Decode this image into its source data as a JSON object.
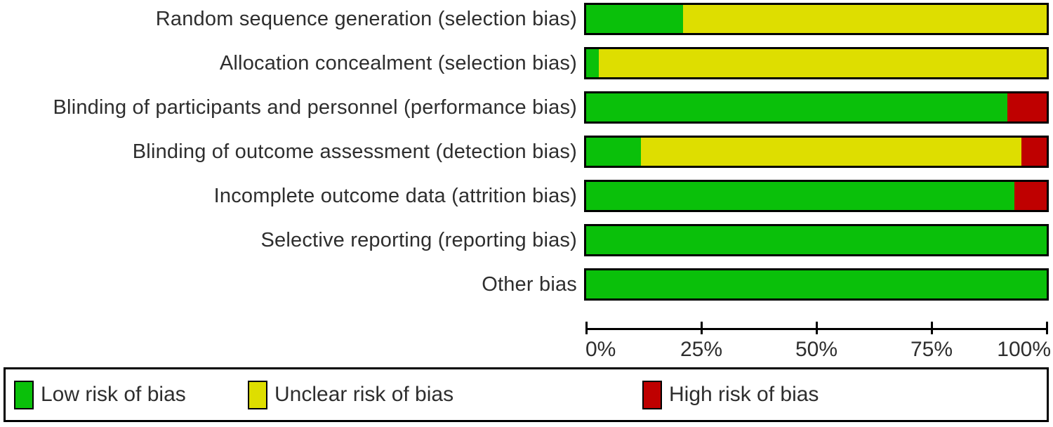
{
  "chart_data": {
    "type": "bar",
    "orientation": "horizontal_stacked",
    "title": "",
    "xlabel": "",
    "ylabel": "",
    "categories": [
      "Random sequence generation (selection bias)",
      "Allocation concealment (selection bias)",
      "Blinding of participants and personnel (performance bias)",
      "Blinding of outcome assessment (detection bias)",
      "Incomplete outcome data (attrition bias)",
      "Selective reporting (reporting bias)",
      "Other bias"
    ],
    "series": [
      {
        "name": "Low risk of bias",
        "color": "#0AC00A",
        "values": [
          21,
          2.7,
          91.5,
          11.9,
          93,
          100,
          100
        ]
      },
      {
        "name": "Unclear risk of bias",
        "color": "#DEDE00",
        "values": [
          79,
          97.3,
          0,
          82.6,
          0,
          0,
          0
        ]
      },
      {
        "name": "High risk of bias",
        "color": "#BF0000",
        "values": [
          0,
          0,
          8.5,
          5.5,
          7,
          0,
          0
        ]
      }
    ],
    "x_axis": {
      "ticks": [
        "0%",
        "25%",
        "50%",
        "75%",
        "100%"
      ],
      "range": [
        0,
        100
      ],
      "unit": "percent",
      "grid": false
    },
    "legend": {
      "position": "bottom",
      "entries": [
        "Low risk of bias",
        "Unclear risk of bias",
        "High risk of bias"
      ]
    },
    "colors": {
      "low": "#0AC00A",
      "unclear": "#DEDE00",
      "high": "#BF0000",
      "border": "#000000",
      "background": "#ffffff"
    }
  }
}
